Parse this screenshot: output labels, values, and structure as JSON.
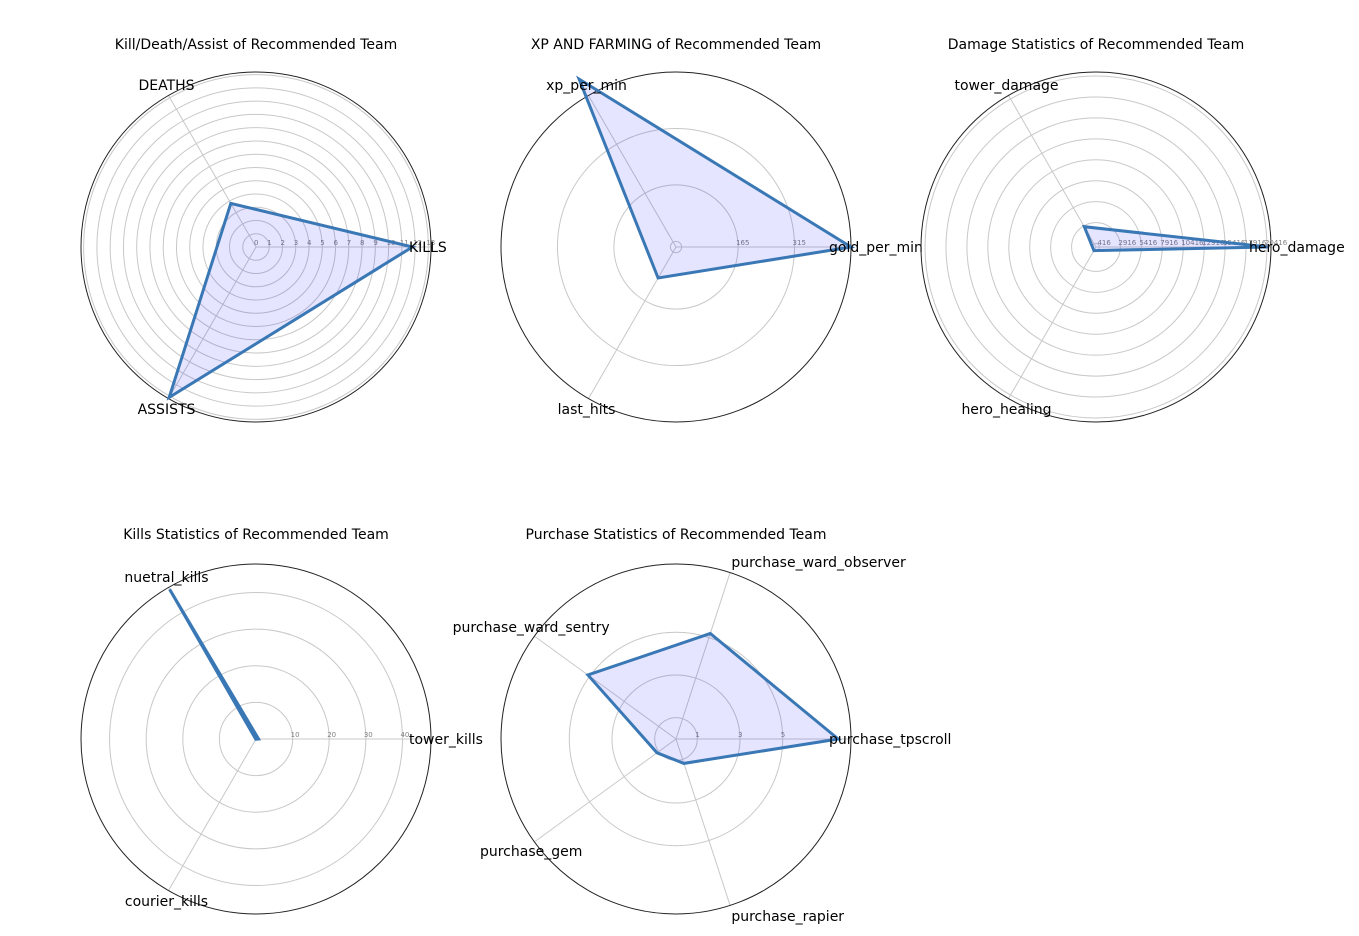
{
  "colors": {
    "line": "#3a78b5",
    "fill": "#0000ff",
    "grid": "#c8c8c8",
    "tick": "#808080"
  },
  "chart_data": [
    {
      "type": "radar",
      "title": "Kill/Death/Assist of Recommended Team",
      "axes": [
        "KILLS",
        "DEATHS",
        "ASSISTS"
      ],
      "values": [
        11.8,
        3.8,
        13.1
      ],
      "rmax": 13.2,
      "rticks": [
        0,
        1,
        2,
        3,
        4,
        5,
        6,
        7,
        8,
        9,
        10,
        11,
        12,
        13
      ],
      "rtick_labels": [
        "0",
        "1",
        "2",
        "3",
        "4",
        "5",
        "6",
        "7",
        "8",
        "9",
        "10",
        "11",
        "12",
        "13"
      ]
    },
    {
      "type": "radar",
      "title": "XP AND FARMING of Recommended Team",
      "axes": [
        "gold_per_min",
        "xp_per_min",
        "last_hits"
      ],
      "values": [
        465,
        515,
        95
      ],
      "rmax": 465,
      "rticks": [
        15,
        165,
        315
      ],
      "rtick_labels": [
        "",
        "165",
        "315"
      ]
    },
    {
      "type": "radar",
      "title": "Damage Statistics of Recommended Team",
      "axes": [
        "hero_damage",
        "tower_damage",
        "hero_healing"
      ],
      "values": [
        20500,
        2800,
        500
      ],
      "rmax": 20900,
      "rticks": [
        416,
        2916,
        5416,
        7916,
        10416,
        12916,
        15416,
        17916,
        20416
      ],
      "rtick_labels": [
        "416",
        "2916",
        "5416",
        "7916",
        "10416",
        "12916",
        "15416",
        "17916",
        "20416"
      ]
    },
    {
      "type": "radar",
      "title": "Kills Statistics of Recommended Team",
      "axes": [
        "tower_kills",
        "nuetral_kills",
        "courier_kills"
      ],
      "values": [
        0.7,
        47.2,
        0.1
      ],
      "rmax": 47.8,
      "rticks": [
        0,
        10,
        20,
        30,
        40
      ],
      "rtick_labels": [
        "",
        "10",
        "20",
        "30",
        "40"
      ]
    },
    {
      "type": "radar",
      "title": "Purchase Statistics of Recommended Team",
      "axes": [
        "purchase_tpscroll",
        "purchase_ward_observer",
        "purchase_ward_sentry",
        "purchase_gem",
        "purchase_rapier"
      ],
      "values": [
        7.6,
        5.2,
        5.1,
        1.1,
        1.2
      ],
      "rmax": 8.2,
      "rticks": [
        0,
        1,
        3,
        5
      ],
      "rtick_labels": [
        "",
        "1",
        "3",
        "5"
      ]
    }
  ]
}
